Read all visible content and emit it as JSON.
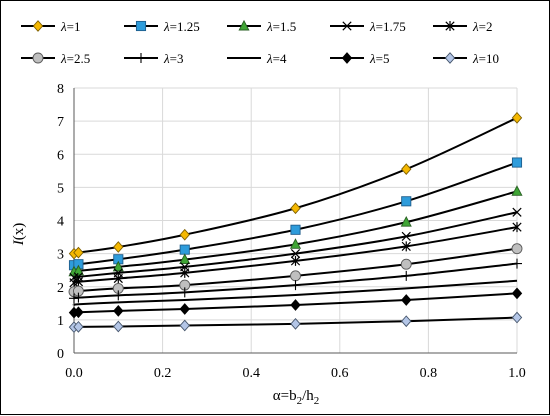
{
  "chart_data": {
    "type": "line",
    "x_axis": {
      "label": "α=b2/h2",
      "label_parts": {
        "prefix": "α=b",
        "sub1": "2",
        "mid": "/h",
        "sub2": "2"
      },
      "lim": [
        0,
        1
      ],
      "ticks": [
        0.0,
        0.2,
        0.4,
        0.6,
        0.8,
        1.0
      ],
      "tick_labels": [
        "0.0",
        "0.2",
        "0.4",
        "0.6",
        "0.8",
        "1.0"
      ]
    },
    "y_axis": {
      "label": "I(x)",
      "label_parts": {
        "italic": "I",
        "rest": "(x)"
      },
      "lim": [
        0,
        8
      ],
      "ticks": [
        0,
        1,
        2,
        3,
        4,
        5,
        6,
        7,
        8
      ],
      "tick_labels": [
        "0",
        "1",
        "2",
        "3",
        "4",
        "5",
        "6",
        "7",
        "8"
      ]
    },
    "grid": true,
    "legend_position": "top",
    "x": [
      0.0,
      0.01,
      0.1,
      0.25,
      0.5,
      0.75,
      1.0
    ],
    "series": [
      {
        "name": "λ=1",
        "lambda_symbol": "λ",
        "lambda_value": "=1",
        "marker": "diamond",
        "fill": "#F5B800",
        "stroke": "#7F6000",
        "values": [
          3.0,
          3.03,
          3.2,
          3.57,
          4.37,
          5.55,
          7.1
        ]
      },
      {
        "name": "λ=1.25",
        "lambda_symbol": "λ",
        "lambda_value": "=1.25",
        "marker": "square",
        "fill": "#2E9CDB",
        "stroke": "#1F5E8C",
        "values": [
          2.65,
          2.68,
          2.83,
          3.12,
          3.72,
          4.58,
          5.75
        ]
      },
      {
        "name": "λ=1.5",
        "lambda_symbol": "λ",
        "lambda_value": "=1.5",
        "marker": "triangle",
        "fill": "#3FA535",
        "stroke": "#275E22",
        "values": [
          2.45,
          2.48,
          2.6,
          2.82,
          3.28,
          3.95,
          4.88
        ]
      },
      {
        "name": "λ=1.75",
        "lambda_symbol": "λ",
        "lambda_value": "=1.75",
        "marker": "x",
        "fill": "none",
        "stroke": "#000000",
        "values": [
          2.28,
          2.3,
          2.42,
          2.6,
          3.0,
          3.52,
          4.25
        ]
      },
      {
        "name": "λ=2",
        "lambda_symbol": "λ",
        "lambda_value": "=2",
        "marker": "star",
        "fill": "none",
        "stroke": "#000000",
        "values": [
          2.12,
          2.15,
          2.25,
          2.42,
          2.78,
          3.22,
          3.8
        ]
      },
      {
        "name": "λ=2.5",
        "lambda_symbol": "λ",
        "lambda_value": "=2.5",
        "marker": "circle",
        "fill": "#BFBFBF",
        "stroke": "#595959",
        "values": [
          1.85,
          1.87,
          1.95,
          2.05,
          2.33,
          2.68,
          3.15
        ]
      },
      {
        "name": "λ=3",
        "lambda_symbol": "λ",
        "lambda_value": "=3",
        "marker": "plus",
        "fill": "none",
        "stroke": "#000000",
        "values": [
          1.65,
          1.67,
          1.74,
          1.83,
          2.05,
          2.33,
          2.7
        ]
      },
      {
        "name": "λ=4",
        "lambda_symbol": "λ",
        "lambda_value": "=4",
        "marker": "dash",
        "fill": "none",
        "stroke": "#000000",
        "values": [
          1.45,
          1.47,
          1.53,
          1.6,
          1.75,
          1.95,
          2.18
        ]
      },
      {
        "name": "λ=5",
        "lambda_symbol": "λ",
        "lambda_value": "=5",
        "marker": "diamond",
        "fill": "#000000",
        "stroke": "#000000",
        "values": [
          1.22,
          1.23,
          1.27,
          1.33,
          1.45,
          1.6,
          1.8
        ]
      },
      {
        "name": "λ=10",
        "lambda_symbol": "λ",
        "lambda_value": "=10",
        "marker": "diamond",
        "fill": "#B4C6E7",
        "stroke": "#44546A",
        "values": [
          0.78,
          0.79,
          0.8,
          0.83,
          0.88,
          0.96,
          1.07
        ]
      }
    ]
  }
}
